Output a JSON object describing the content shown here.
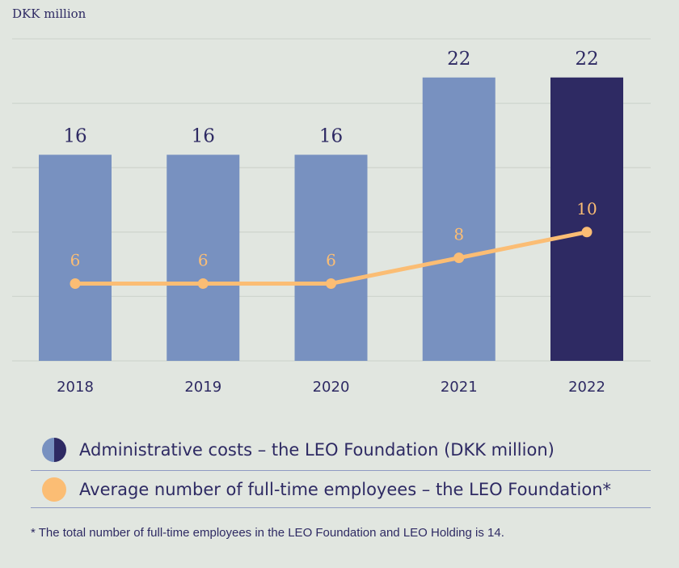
{
  "unit_label": "DKK million",
  "chart_data": {
    "type": "bar",
    "categories": [
      "2018",
      "2019",
      "2020",
      "2021",
      "2022"
    ],
    "series": [
      {
        "name": "Administrative costs – the LEO Foundation (DKK million)",
        "kind": "bar",
        "values": [
          16,
          16,
          16,
          22,
          22
        ],
        "colors": [
          "#7891c0",
          "#7891c0",
          "#7891c0",
          "#7891c0",
          "#2e2a63"
        ]
      },
      {
        "name": "Average number of full-time employees – the LEO Foundation*",
        "kind": "line",
        "values": [
          6,
          6,
          6,
          8,
          10
        ],
        "color": "#fbbd74"
      }
    ],
    "ylim": [
      0,
      25
    ],
    "grid": true
  },
  "legend": {
    "items": [
      {
        "label": "Administrative costs – the LEO Foundation (DKK million)",
        "icon": "half-circle-icon"
      },
      {
        "label": "Average number of full-time employees – the LEO Foundation*",
        "icon": "orange-circle-icon"
      }
    ]
  },
  "footnote": "* The total number of full-time employees in the LEO Foundation and LEO Holding is 14."
}
